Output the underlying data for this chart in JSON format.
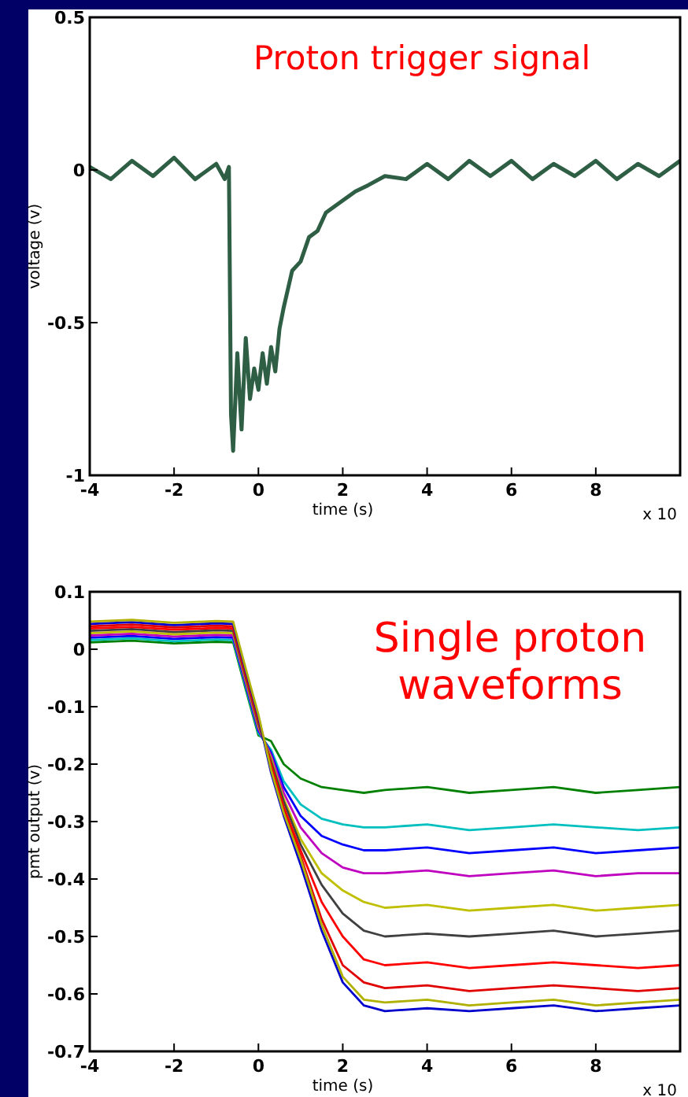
{
  "chart_data": [
    {
      "type": "line",
      "title": "Proton trigger signal",
      "xlabel": "time (s)",
      "ylabel": "voltage (v)",
      "annotations": [
        "x 10"
      ],
      "xlim": [
        -4,
        10
      ],
      "ylim": [
        -1,
        0.5
      ],
      "xticks": [
        -4,
        -2,
        0,
        2,
        4,
        6,
        8
      ],
      "yticks": [
        {
          "value": -1,
          "label": "-1"
        },
        {
          "value": -0.5,
          "label": "-0.5"
        },
        {
          "value": 0,
          "label": "0"
        },
        {
          "value": 0.5,
          "label": "0.5"
        }
      ],
      "x": [
        -4,
        -3.5,
        -3,
        -2.5,
        -2,
        -1.5,
        -1,
        -0.8,
        -0.7,
        -0.65,
        -0.6,
        -0.5,
        -0.4,
        -0.3,
        -0.2,
        -0.1,
        0,
        0.1,
        0.2,
        0.3,
        0.4,
        0.5,
        0.6,
        0.8,
        1,
        1.2,
        1.4,
        1.6,
        1.8,
        2,
        2.3,
        2.6,
        3,
        3.5,
        4,
        4.5,
        5,
        5.5,
        6,
        6.5,
        7,
        7.5,
        8,
        8.5,
        9,
        9.5,
        10
      ],
      "series": [
        {
          "color": "#2e5e44",
          "values": [
            0.01,
            -0.03,
            0.03,
            -0.02,
            0.04,
            -0.03,
            0.02,
            -0.03,
            0.01,
            -0.8,
            -0.92,
            -0.6,
            -0.85,
            -0.55,
            -0.75,
            -0.65,
            -0.72,
            -0.6,
            -0.7,
            -0.58,
            -0.66,
            -0.52,
            -0.45,
            -0.33,
            -0.3,
            -0.22,
            -0.2,
            -0.14,
            -0.12,
            -0.1,
            -0.07,
            -0.05,
            -0.02,
            -0.03,
            0.02,
            -0.03,
            0.03,
            -0.02,
            0.03,
            -0.03,
            0.02,
            -0.02,
            0.03,
            -0.03,
            0.02,
            -0.02,
            0.03
          ]
        }
      ]
    },
    {
      "type": "line",
      "title": "Single proton waveforms",
      "xlabel": "time (s)",
      "ylabel": "pmt output (v)",
      "annotations": [
        "x 10"
      ],
      "xlim": [
        -4,
        10
      ],
      "ylim": [
        -0.7,
        0.1
      ],
      "xticks": [
        -4,
        -2,
        0,
        2,
        4,
        6,
        8
      ],
      "yticks": [
        -0.7,
        -0.6,
        -0.5,
        -0.4,
        -0.3,
        -0.2,
        -0.1,
        0,
        0.1
      ],
      "x": [
        -4,
        -3,
        -2,
        -1,
        -0.6,
        -0.3,
        0,
        0.3,
        0.6,
        1,
        1.5,
        2,
        2.5,
        3,
        4,
        5,
        6,
        7,
        8,
        9,
        10
      ],
      "series": [
        {
          "color": "#008000",
          "values": [
            0.012,
            0.015,
            0.01,
            0.013,
            0.012,
            -0.07,
            -0.15,
            -0.16,
            -0.2,
            -0.225,
            -0.24,
            -0.245,
            -0.25,
            -0.245,
            -0.24,
            -0.25,
            -0.245,
            -0.24,
            -0.25,
            -0.245,
            -0.24
          ]
        },
        {
          "color": "#00bfbf",
          "values": [
            0.016,
            0.019,
            0.014,
            0.017,
            0.016,
            -0.066,
            -0.146,
            -0.175,
            -0.23,
            -0.27,
            -0.295,
            -0.305,
            -0.31,
            -0.31,
            -0.305,
            -0.315,
            -0.31,
            -0.305,
            -0.31,
            -0.315,
            -0.31
          ]
        },
        {
          "color": "#0000ff",
          "values": [
            0.02,
            0.023,
            0.018,
            0.021,
            0.02,
            -0.062,
            -0.142,
            -0.18,
            -0.24,
            -0.29,
            -0.325,
            -0.34,
            -0.35,
            -0.35,
            -0.345,
            -0.355,
            -0.35,
            -0.345,
            -0.355,
            -0.35,
            -0.345
          ]
        },
        {
          "color": "#bf00bf",
          "values": [
            0.024,
            0.027,
            0.022,
            0.025,
            0.024,
            -0.058,
            -0.138,
            -0.185,
            -0.25,
            -0.31,
            -0.355,
            -0.38,
            -0.39,
            -0.39,
            -0.385,
            -0.395,
            -0.39,
            -0.385,
            -0.395,
            -0.39,
            -0.39
          ]
        },
        {
          "color": "#bfbf00",
          "values": [
            0.028,
            0.031,
            0.026,
            0.029,
            0.028,
            -0.054,
            -0.134,
            -0.19,
            -0.26,
            -0.33,
            -0.39,
            -0.42,
            -0.44,
            -0.45,
            -0.445,
            -0.455,
            -0.45,
            -0.445,
            -0.455,
            -0.45,
            -0.445
          ]
        },
        {
          "color": "#404040",
          "values": [
            0.032,
            0.035,
            0.03,
            0.033,
            0.032,
            -0.05,
            -0.13,
            -0.195,
            -0.265,
            -0.34,
            -0.41,
            -0.46,
            -0.49,
            -0.5,
            -0.495,
            -0.5,
            -0.495,
            -0.49,
            -0.5,
            -0.495,
            -0.49
          ]
        },
        {
          "color": "#ff0000",
          "values": [
            0.036,
            0.039,
            0.034,
            0.037,
            0.036,
            -0.046,
            -0.126,
            -0.2,
            -0.275,
            -0.35,
            -0.44,
            -0.5,
            -0.54,
            -0.55,
            -0.545,
            -0.555,
            -0.55,
            -0.545,
            -0.55,
            -0.555,
            -0.55
          ]
        },
        {
          "color": "#e00000",
          "values": [
            0.04,
            0.043,
            0.038,
            0.041,
            0.04,
            -0.042,
            -0.122,
            -0.205,
            -0.28,
            -0.36,
            -0.47,
            -0.55,
            -0.58,
            -0.59,
            -0.585,
            -0.595,
            -0.59,
            -0.585,
            -0.59,
            -0.595,
            -0.59
          ]
        },
        {
          "color": "#0000cc",
          "values": [
            0.044,
            0.047,
            0.042,
            0.045,
            0.044,
            -0.038,
            -0.118,
            -0.215,
            -0.29,
            -0.375,
            -0.49,
            -0.58,
            -0.62,
            -0.63,
            -0.625,
            -0.63,
            -0.625,
            -0.62,
            -0.63,
            -0.625,
            -0.62
          ]
        },
        {
          "color": "#b0b000",
          "values": [
            0.048,
            0.051,
            0.046,
            0.049,
            0.048,
            -0.034,
            -0.114,
            -0.21,
            -0.285,
            -0.365,
            -0.48,
            -0.57,
            -0.61,
            -0.615,
            -0.61,
            -0.62,
            -0.615,
            -0.61,
            -0.62,
            -0.615,
            -0.61
          ]
        }
      ]
    }
  ]
}
